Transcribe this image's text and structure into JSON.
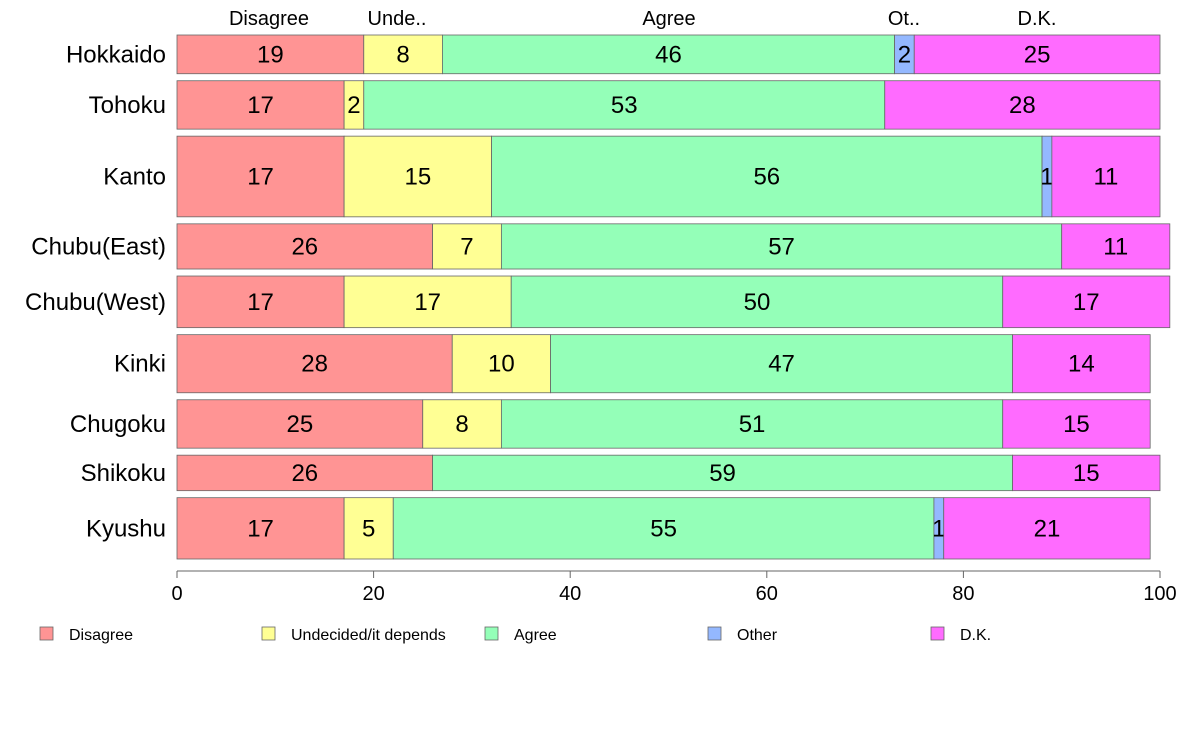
{
  "chart_data": {
    "type": "bar",
    "orientation": "horizontal",
    "stacked": true,
    "xlim": [
      0,
      100
    ],
    "x_ticks": [
      0,
      20,
      40,
      60,
      80,
      100
    ],
    "grid": false,
    "legend_position": "bottom",
    "column_headers": [
      "Disagree",
      "Unde..",
      "Agree",
      "Ot..",
      "D.K."
    ],
    "categories": [
      "Hokkaido",
      "Tohoku",
      "Kanto",
      "Chubu(East)",
      "Chubu(West)",
      "Kinki",
      "Chugoku",
      "Shikoku",
      "Kyushu"
    ],
    "series": [
      {
        "name": "Disagree",
        "color": "#ff9494",
        "values": [
          19,
          17,
          17,
          26,
          17,
          28,
          25,
          26,
          17
        ]
      },
      {
        "name": "Undecided/it depends",
        "color": "#ffff94",
        "values": [
          8,
          2,
          15,
          7,
          17,
          10,
          8,
          0,
          5
        ]
      },
      {
        "name": "Agree",
        "color": "#94ffb8",
        "values": [
          46,
          53,
          56,
          57,
          50,
          47,
          51,
          59,
          55
        ]
      },
      {
        "name": "Other",
        "color": "#94b8ff",
        "values": [
          2,
          0,
          1,
          0,
          0,
          0,
          0,
          0,
          1
        ]
      },
      {
        "name": "D.K.",
        "color": "#ff6bff",
        "values": [
          25,
          28,
          11,
          11,
          17,
          14,
          15,
          15,
          21
        ]
      }
    ],
    "row_weights": [
      12,
      15,
      25,
      14,
      16,
      18,
      15,
      11,
      19
    ]
  }
}
